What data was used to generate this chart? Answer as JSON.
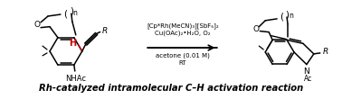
{
  "title_text": "Rh-catalyzed intramolecular C–H activation reaction",
  "reagent_line1": "[Cp*Rh(MeCN)₃][SbF₆]₂",
  "reagent_line2": "Cu(OAc)₂•H₂O, O₂",
  "reagent_line3": "acetone (0.01 M)",
  "reagent_line4": "RT",
  "arrow_color": "#000000",
  "bg_color": "#ffffff",
  "text_color": "#000000",
  "red_color": "#cc0000",
  "structure_color": "#000000",
  "figsize": [
    3.78,
    1.1
  ],
  "dpi": 100
}
